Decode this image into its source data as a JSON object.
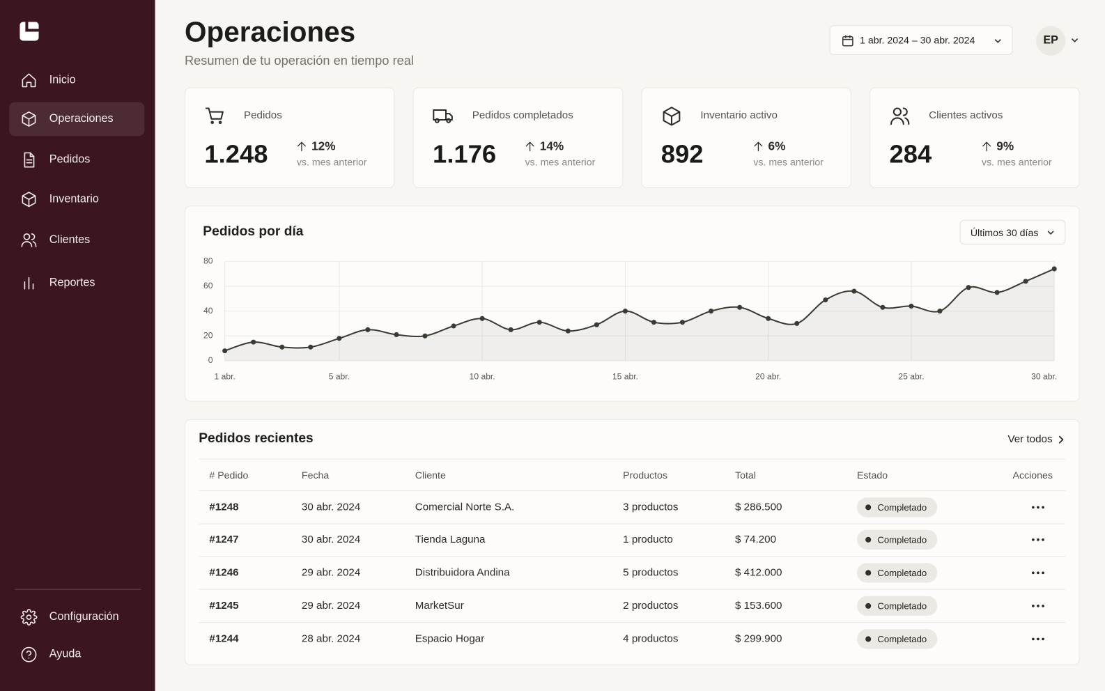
{
  "sidebar": {
    "nav": [
      "Inicio",
      "Operaciones",
      "Pedidos",
      "Inventario",
      "Clientes",
      "Reportes"
    ],
    "footer": [
      "Configuración",
      "Ayuda"
    ]
  },
  "header": {
    "title": "Operaciones",
    "subtitle": "Resumen de tu operación en tiempo real",
    "date_range": "1 abr. 2024 – 30 abr. 2024",
    "user_initials": "EP"
  },
  "kpis": [
    {
      "label": "Pedidos",
      "value": "1.248",
      "change": "12%",
      "note": "vs. mes anterior"
    },
    {
      "label": "Pedidos completados",
      "value": "1.176",
      "change": "14%",
      "note": "vs. mes anterior"
    },
    {
      "label": "Inventario activo",
      "value": "892",
      "change": "6%",
      "note": "vs. mes anterior"
    },
    {
      "label": "Clientes activos",
      "value": "284",
      "change": "9%",
      "note": "vs. mes anterior"
    }
  ],
  "chart_panel": {
    "range_selector": "Últimos 30 días"
  },
  "chart_data": {
    "type": "line",
    "title": "Pedidos por día",
    "categories": [
      "1 abr.",
      null,
      null,
      null,
      "5 abr.",
      null,
      null,
      null,
      null,
      "10 abr.",
      null,
      null,
      null,
      null,
      "15 abr.",
      null,
      null,
      null,
      null,
      "20 abr.",
      null,
      null,
      null,
      null,
      "25 abr.",
      null,
      null,
      null,
      null,
      "30 abr."
    ],
    "series": [
      {
        "name": "Pedidos",
        "color": "#383c32",
        "values": [
          8,
          15,
          11,
          11,
          18,
          25,
          21,
          20,
          28,
          34,
          25,
          31,
          24,
          29,
          40,
          31,
          31,
          40,
          43,
          34,
          30,
          49,
          56,
          43,
          44,
          40,
          59,
          55,
          64,
          74
        ]
      }
    ],
    "ylim": [
      0,
      80
    ],
    "yticks": [
      0,
      20,
      40,
      60,
      80
    ],
    "grid": true
  },
  "recent_orders": {
    "title": "Pedidos recientes",
    "view_all": "Ver todos",
    "columns": [
      "# Pedido",
      "Fecha",
      "Cliente",
      "Productos",
      "Total",
      "Estado",
      "Acciones"
    ],
    "rows": [
      [
        "#1248",
        "30 abr. 2024",
        "Comercial Norte S.A.",
        "3 productos",
        "$ 286.500",
        "Completado"
      ],
      [
        "#1247",
        "30 abr. 2024",
        "Tienda Laguna",
        "1 producto",
        "$ 74.200",
        "Completado"
      ],
      [
        "#1246",
        "29 abr. 2024",
        "Distribuidora Andina",
        "5 productos",
        "$ 412.000",
        "Completado"
      ],
      [
        "#1245",
        "29 abr. 2024",
        "MarketSur",
        "2 productos",
        "$ 153.600",
        "Completado"
      ],
      [
        "#1244",
        "28 abr. 2024",
        "Espacio Hogar",
        "4 productos",
        "$ 299.900",
        "Completado"
      ]
    ]
  }
}
